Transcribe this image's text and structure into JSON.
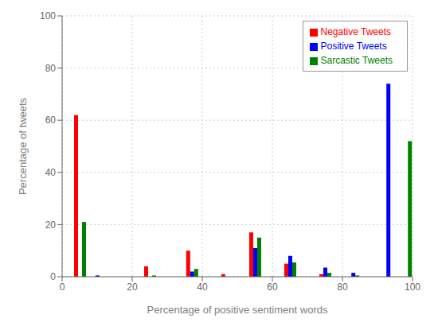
{
  "chart_data": {
    "type": "bar",
    "xlabel": "Percentage of positive sentiment words",
    "ylabel": "Percentage of tweets",
    "x": [
      5,
      10,
      25,
      37,
      47,
      55,
      65,
      75,
      83,
      93,
      98
    ],
    "series": [
      {
        "name": "Negative Tweets",
        "color": "#ff0000",
        "values": [
          62.0,
          0.0,
          4.0,
          10.0,
          1.0,
          17.0,
          5.0,
          1.0,
          0.0,
          0.0,
          0.0
        ]
      },
      {
        "name": "Positive Tweets",
        "color": "#0000ff",
        "values": [
          0.0,
          0.5,
          0.0,
          2.0,
          0.0,
          11.0,
          8.0,
          3.5,
          1.5,
          74.0,
          0.0
        ]
      },
      {
        "name": "Sarcastic Tweets",
        "color": "#008000",
        "values": [
          21.0,
          0.0,
          0.5,
          3.0,
          0.0,
          15.0,
          5.5,
          1.5,
          0.5,
          0.0,
          52.0
        ]
      }
    ],
    "xlim": [
      0,
      100
    ],
    "ylim": [
      0,
      100
    ],
    "xticks": [
      0,
      20,
      40,
      60,
      80,
      100
    ],
    "yticks": [
      0,
      20,
      40,
      60,
      80,
      100
    ],
    "grid": true,
    "legend": "upper right"
  }
}
